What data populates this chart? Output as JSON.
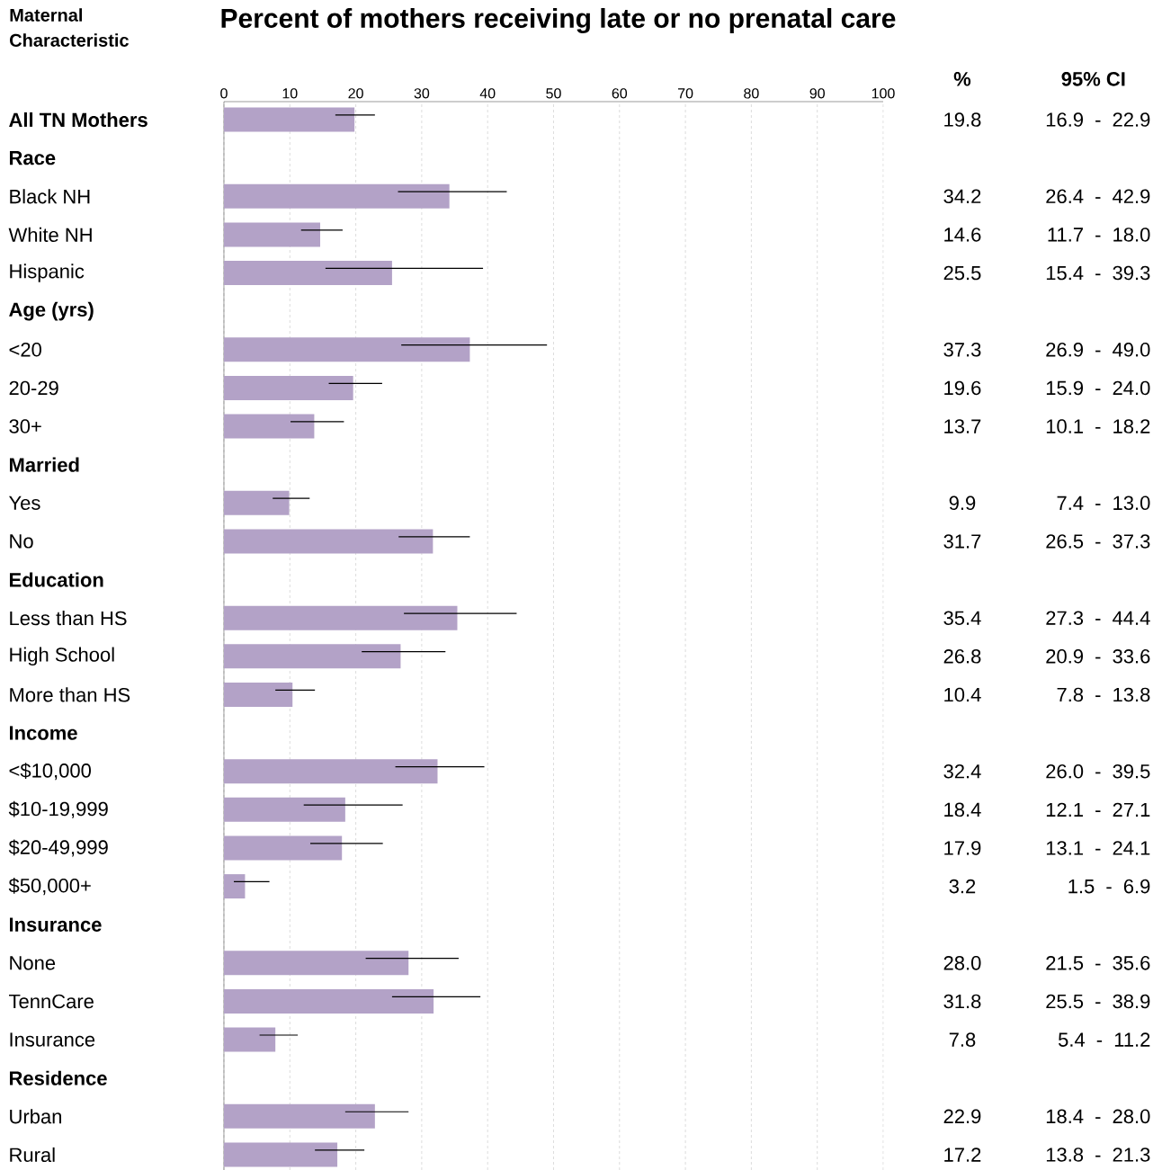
{
  "chart_data": {
    "type": "bar",
    "orientation": "horizontal",
    "title": "Percent of mothers receiving late or no prenatal care",
    "ylabel": "Maternal Characteristic",
    "annotations": [
      "%",
      "95% CI",
      "16.9 - 22.9",
      "26.4 - 42.9",
      "11.7 - 18.0",
      "15.4 - 39.3",
      "26.9 - 49.0",
      "15.9 - 24.0",
      "10.1 - 18.2",
      "7.4 - 13.0",
      "26.5 - 37.3",
      "27.3 - 44.4",
      "20.9 - 33.6",
      "7.8 - 13.8",
      "26.0 - 39.5",
      "12.1 - 27.1",
      "13.1 - 24.1",
      "1.5 - 6.9",
      "21.5 - 35.6",
      "25.5 - 38.9",
      "5.4 - 11.2",
      "18.4 - 28.0",
      "13.8 - 21.3"
    ],
    "categories": [
      "All TN Mothers",
      "Race",
      "Black NH",
      "White NH",
      "Hispanic",
      "Age (yrs)",
      "<20",
      "20-29",
      "30+",
      "Married",
      "Yes",
      "No",
      "Education",
      "Less than HS",
      "High School",
      "More than HS",
      "Income",
      "<$10,000",
      "$10-19,999",
      "$20-49,999",
      "$50,000+",
      "Insurance",
      "None",
      "TennCare",
      "Insurance",
      "Residence",
      "Urban",
      "Rural"
    ],
    "values": [
      19.8,
      null,
      34.2,
      14.6,
      25.5,
      null,
      37.3,
      19.6,
      13.7,
      null,
      9.9,
      31.7,
      null,
      35.4,
      26.8,
      10.4,
      null,
      32.4,
      18.4,
      17.9,
      3.2,
      null,
      28.0,
      31.8,
      7.8,
      null,
      22.9,
      17.2
    ],
    "errors": [
      [
        16.9,
        22.9
      ],
      null,
      [
        26.4,
        42.9
      ],
      [
        11.7,
        18.0
      ],
      [
        15.4,
        39.3
      ],
      null,
      [
        26.9,
        49.0
      ],
      [
        15.9,
        24.0
      ],
      [
        10.1,
        18.2
      ],
      null,
      [
        7.4,
        13.0
      ],
      [
        26.5,
        37.3
      ],
      null,
      [
        27.3,
        44.4
      ],
      [
        20.9,
        33.6
      ],
      [
        7.8,
        13.8
      ],
      null,
      [
        26.0,
        39.5
      ],
      [
        12.1,
        27.1
      ],
      [
        13.1,
        24.1
      ],
      [
        1.5,
        6.9
      ],
      null,
      [
        21.5,
        35.6
      ],
      [
        25.5,
        38.9
      ],
      [
        5.4,
        11.2
      ],
      null,
      [
        18.4,
        28.0
      ],
      [
        13.8,
        21.3
      ]
    ],
    "color": "#b3a2c7",
    "value_labels": [
      "19.8",
      null,
      "34.2",
      "14.6",
      "25.5",
      null,
      "37.3",
      "19.6",
      "13.7",
      null,
      "9.9",
      "31.7",
      null,
      "35.4",
      "26.8",
      "10.4",
      null,
      "32.4",
      "18.4",
      "17.9",
      "3.2",
      null,
      "28.0",
      "31.8",
      "7.8",
      null,
      "22.9",
      "17.2"
    ],
    "xlim": [
      0,
      100
    ],
    "xticks": [
      0,
      10,
      20,
      30,
      40,
      50,
      60,
      70,
      80,
      90,
      100
    ],
    "grid": "x",
    "marker": "none"
  }
}
